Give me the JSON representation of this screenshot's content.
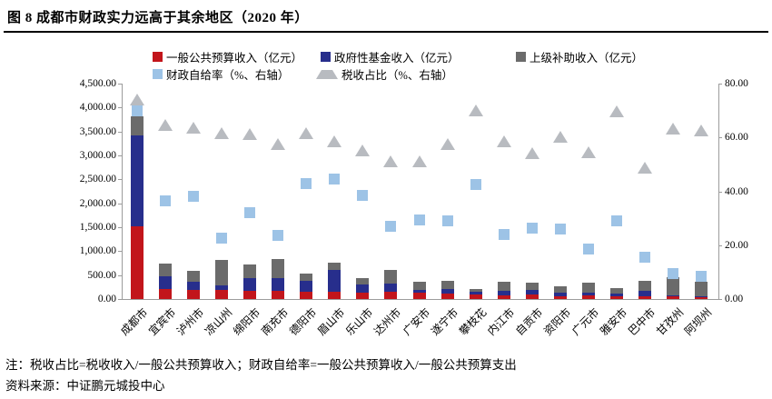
{
  "title": "图 8   成都市财政实力远高于其余地区（2020 年）",
  "legend": [
    {
      "label": "一般公共预算收入（亿元）",
      "marker": "square",
      "color": "#C2151B"
    },
    {
      "label": "政府性基金收入（亿元）",
      "marker": "square",
      "color": "#272E8C"
    },
    {
      "label": "上级补助收入（亿元）",
      "marker": "square",
      "color": "#6B6B6B"
    },
    {
      "label": "财政自给率（%、右轴）",
      "marker": "square",
      "color": "#9DC3E6"
    },
    {
      "label": "税收占比（%、右轴）",
      "marker": "triangle",
      "color": "#B8BBC0"
    }
  ],
  "chart_data": {
    "type": "bar",
    "subtype": "stacked-bars-with-scatter-overlay",
    "categories": [
      "成都市",
      "宜宾市",
      "泸州市",
      "凉山州",
      "绵阳市",
      "南充市",
      "德阳市",
      "眉山市",
      "乐山市",
      "达州市",
      "广安市",
      "遂宁市",
      "攀枝花",
      "内江市",
      "自贡市",
      "资阳市",
      "广元市",
      "雅安市",
      "巴中市",
      "甘孜州",
      "阿坝州"
    ],
    "series": [
      {
        "name": "一般公共预算收入（亿元）",
        "type": "bar",
        "axis": "left",
        "color": "#C2151B",
        "values": [
          1520,
          205,
          185,
          195,
          180,
          165,
          150,
          145,
          140,
          145,
          125,
          110,
          90,
          85,
          90,
          65,
          70,
          60,
          50,
          50,
          40
        ]
      },
      {
        "name": "政府性基金收入（亿元）",
        "type": "bar",
        "axis": "left",
        "color": "#272E8C",
        "values": [
          1890,
          265,
          185,
          85,
          265,
          280,
          230,
          455,
          160,
          185,
          60,
          105,
          55,
          85,
          95,
          70,
          55,
          50,
          115,
          20,
          15
        ]
      },
      {
        "name": "上级补助收入（亿元）",
        "type": "bar",
        "axis": "left",
        "color": "#6B6B6B",
        "values": [
          410,
          270,
          225,
          540,
          285,
          395,
          150,
          160,
          140,
          280,
          175,
          170,
          65,
          185,
          150,
          140,
          220,
          115,
          220,
          380,
          310
        ]
      },
      {
        "name": "财政自给率（%、右轴）",
        "type": "scatter-square",
        "axis": "right",
        "color": "#9DC3E6",
        "values": [
          70,
          36.5,
          38,
          22.5,
          32,
          23.5,
          43,
          44.5,
          38.5,
          27,
          29.5,
          29,
          42.5,
          24,
          26.5,
          26,
          18.5,
          29,
          15.5,
          9.5,
          8.5
        ]
      },
      {
        "name": "税收占比（%、右轴）",
        "type": "scatter-triangle",
        "axis": "right",
        "color": "#B8BBC0",
        "values": [
          74,
          64.5,
          63.5,
          61.5,
          61,
          57.5,
          61.5,
          58.5,
          55,
          51,
          51,
          57.5,
          70,
          58.5,
          54,
          60,
          54.5,
          69.5,
          48.5,
          63,
          62.5
        ]
      }
    ],
    "left_axis": {
      "min": 0,
      "max": 4500,
      "step": 500,
      "tick_labels": [
        "4,500.00",
        "4,000.00",
        "3,500.00",
        "3,000.00",
        "2,500.00",
        "2,000.00",
        "1,500.00",
        "1,000.00",
        "500.00",
        "0.00"
      ]
    },
    "right_axis": {
      "min": 0,
      "max": 80,
      "step": 20,
      "tick_labels": [
        "80.00",
        "60.00",
        "40.00",
        "20.00",
        "0.00"
      ]
    },
    "grid": false,
    "legend_position": "top"
  },
  "notes": [
    "注：税收占比=税收收入/一般公共预算收入；财政自给率=一般公共预算收入/一般公共预算支出",
    "资料来源：中证鹏元城投中心"
  ]
}
